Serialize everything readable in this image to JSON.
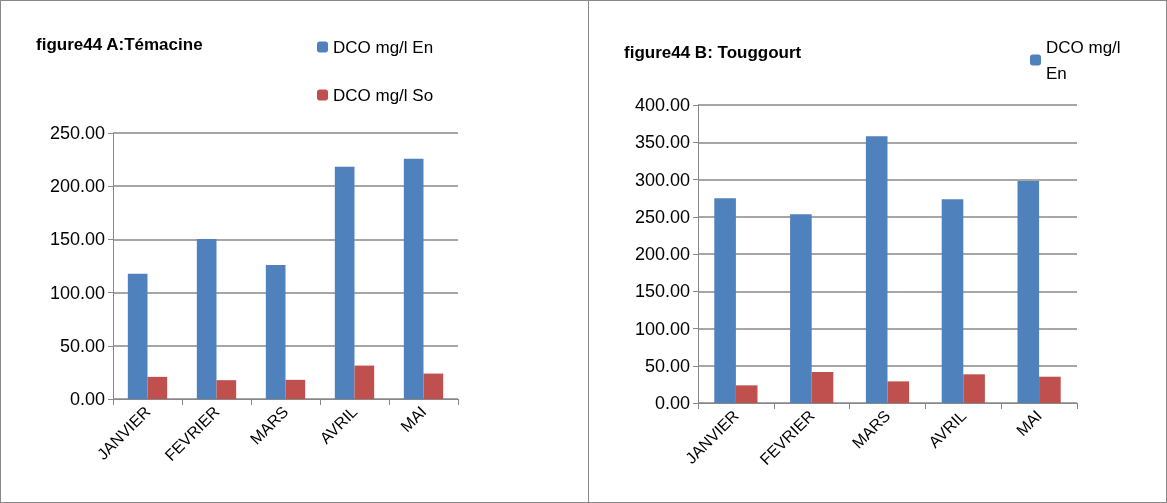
{
  "chart_data": [
    {
      "type": "bar",
      "title": "figure44 A:Témacine",
      "categories": [
        "JANVIER",
        "FEVRIER",
        "MARS",
        "AVRIL",
        "MAI"
      ],
      "series": [
        {
          "name": "DCO mg/l En",
          "color": "#4f81bd",
          "values": [
            117.7,
            150.3,
            126,
            218.3,
            225.8
          ]
        },
        {
          "name": "DCO mg/l So",
          "color": "#c0504d",
          "values": [
            20.8,
            17.7,
            18,
            31.4,
            23.9
          ]
        }
      ],
      "ylim": [
        0,
        250
      ],
      "yticks": [
        {
          "value": 0,
          "label": "0.00"
        },
        {
          "value": 50,
          "label": "50.00"
        },
        {
          "value": 100,
          "label": "100.00"
        },
        {
          "value": 150,
          "label": "150.00"
        },
        {
          "value": 200,
          "label": "200.00"
        },
        {
          "value": 250,
          "label": "250.00"
        }
      ],
      "grid": "y",
      "legend": "top right"
    },
    {
      "type": "bar",
      "title": "figure44 B: Touggourt",
      "categories": [
        "JANVIER",
        "FEVRIER",
        "MARS",
        "AVRIL",
        "MAI"
      ],
      "series": [
        {
          "name": "DCO mg/l En",
          "color": "#4f81bd",
          "values": [
            274.7,
            253.2,
            358,
            273.4,
            298
          ]
        },
        {
          "color": "#c0504d",
          "values": [
            23.7,
            41.6,
            29,
            38.5,
            35.3
          ]
        }
      ],
      "ylim": [
        0,
        400
      ],
      "yticks": [
        {
          "value": 0,
          "label": "0.00"
        },
        {
          "value": 50,
          "label": "50.00"
        },
        {
          "value": 100,
          "label": "100.00"
        },
        {
          "value": 150,
          "label": "150.00"
        },
        {
          "value": 200,
          "label": "200.00"
        },
        {
          "value": 250,
          "label": "250.00"
        },
        {
          "value": 300,
          "label": "300.00"
        },
        {
          "value": 350,
          "label": "350.00"
        },
        {
          "value": 400,
          "label": "400.00"
        }
      ],
      "grid": "y",
      "legend": "top right"
    }
  ]
}
